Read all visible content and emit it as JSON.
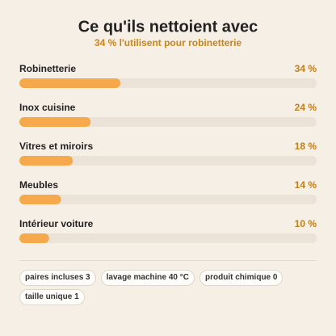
{
  "chart_data": {
    "type": "bar",
    "orientation": "horizontal",
    "title": "Ce qu'ils nettoient avec",
    "subtitle": "34 % l'utilisent pour robinetterie",
    "categories": [
      "Robinetterie",
      "Inox cuisine",
      "Vitres et miroirs",
      "Meubles",
      "Intérieur voiture"
    ],
    "values": [
      34,
      24,
      18,
      14,
      10
    ],
    "value_labels": [
      "34 %",
      "24 %",
      "18 %",
      "14 %",
      "10 %"
    ],
    "color": "#f5a94c",
    "xlim": [
      0,
      100
    ]
  },
  "chips": [
    "paires incluses 3",
    "lavage machine 40 °C",
    "produit chimique 0",
    "taille unique 1"
  ]
}
